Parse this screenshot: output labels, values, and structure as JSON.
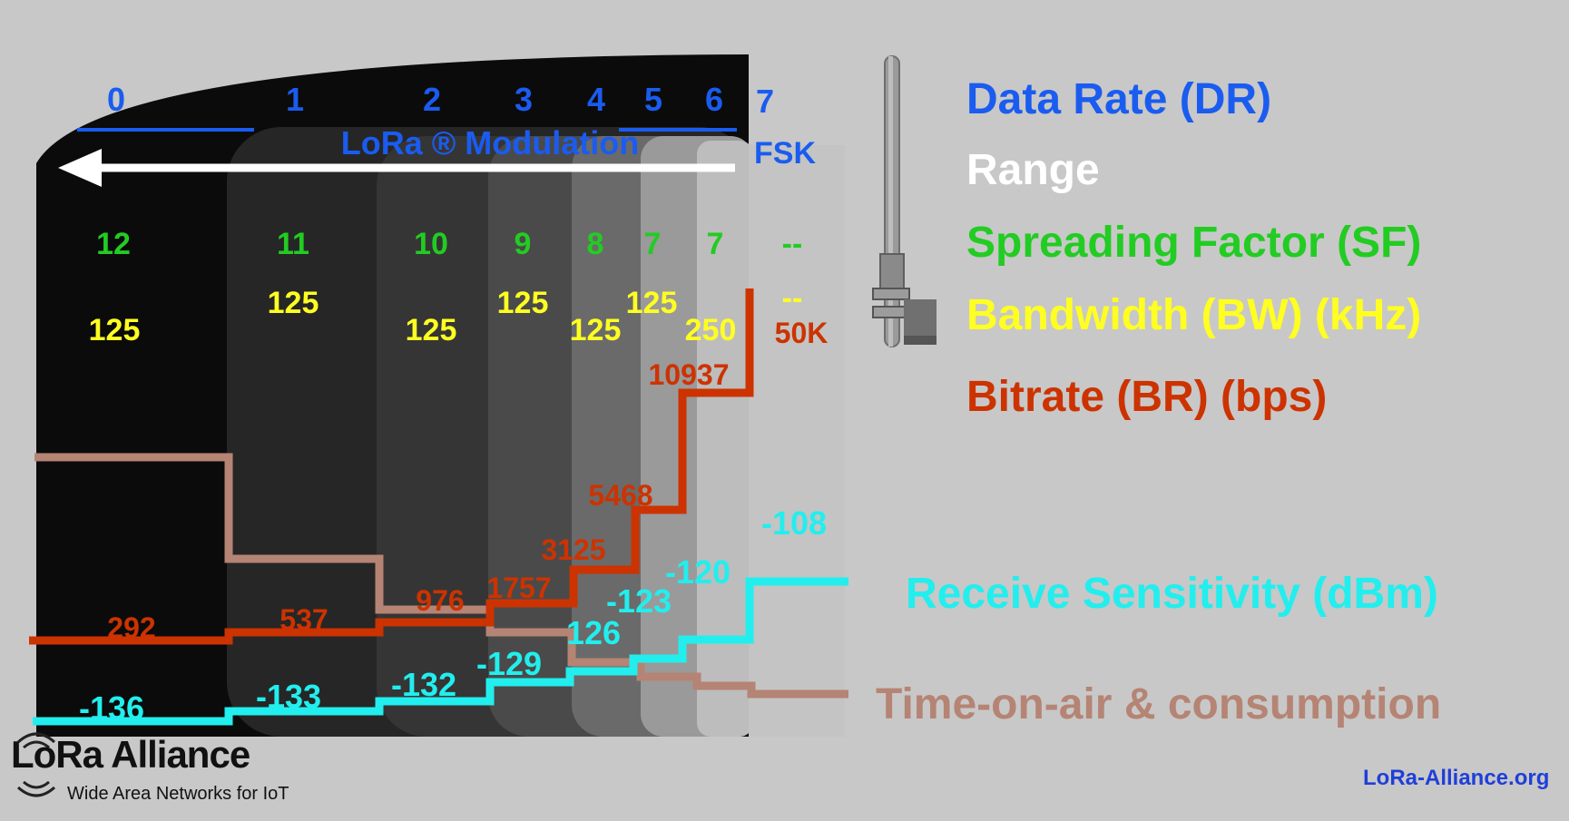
{
  "data_rates": [
    "0",
    "1",
    "2",
    "3",
    "4",
    "5",
    "6",
    "7"
  ],
  "modulation_label": "LoRa ® Modulation",
  "fsk_label": "FSK",
  "spreading_factors": [
    "12",
    "11",
    "10",
    "9",
    "8",
    "7",
    "7",
    "--"
  ],
  "bandwidths": [
    "125",
    "125",
    "125",
    "125",
    "125",
    "125",
    "250",
    "--"
  ],
  "fsk_bandwidth": "50K",
  "bitrates": [
    "292",
    "537",
    "976",
    "1757",
    "3125",
    "5468",
    "10937"
  ],
  "sensitivities": [
    "-136",
    "-133",
    "-132",
    "-129",
    "126",
    "-123",
    "-120",
    "-108"
  ],
  "legend": {
    "data_rate": "Data Rate (DR)",
    "range": "Range",
    "spreading_factor": "Spreading Factor (SF)",
    "bandwidth": "Bandwidth (BW) (kHz)",
    "bitrate": "Bitrate (BR) (bps)",
    "sensitivity": "Receive Sensitivity (dBm)",
    "time_on_air": "Time-on-air & consumption"
  },
  "footer": {
    "logo_text": "LoRa Alliance",
    "tagline": "Wide Area Networks for IoT",
    "site": "LoRa-Alliance.org"
  },
  "colors": {
    "background": "#c8c8c8",
    "data_rate": "#1a5cf0",
    "range": "#ffffff",
    "spreading_factor": "#22cc22",
    "bandwidth": "#ffff22",
    "bitrate": "#cc3300",
    "sensitivity": "#22eeee",
    "time_on_air": "#b58474"
  }
}
